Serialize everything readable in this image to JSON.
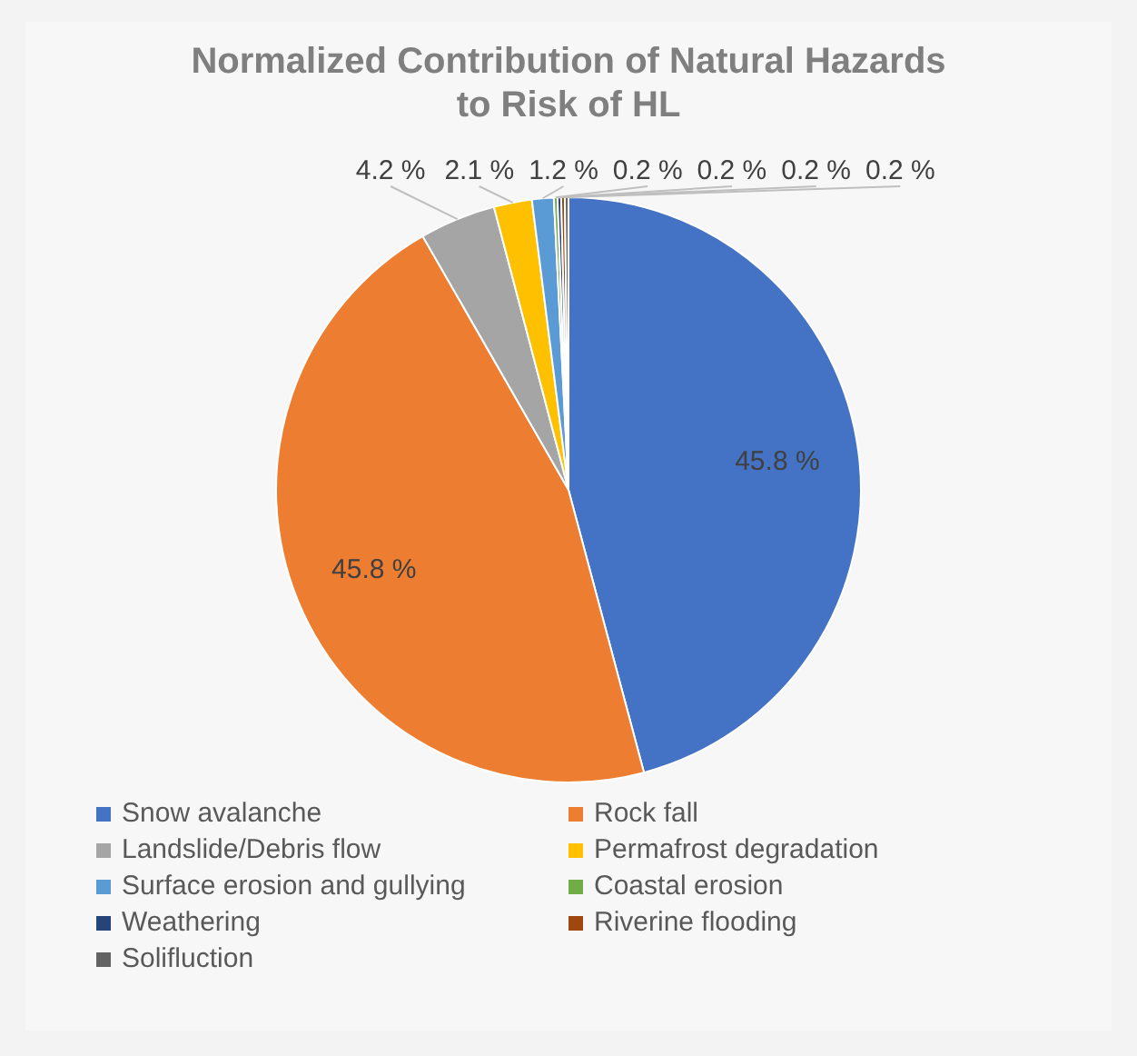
{
  "chart_data": {
    "type": "pie",
    "title": "Normalized Contribution of Natural Hazards to Risk of HL",
    "categories": [
      "Snow avalanche",
      "Rock fall",
      "Landslide/Debris flow",
      "Permafrost degradation",
      "Surface erosion and gullying",
      "Coastal erosion",
      "Weathering",
      "Riverine flooding",
      "Solifluction"
    ],
    "values": [
      45.8,
      45.8,
      4.2,
      2.1,
      1.2,
      0.2,
      0.2,
      0.2,
      0.2
    ],
    "value_labels": [
      "45.8 %",
      "45.8 %",
      "4.2 %",
      "2.1 %",
      "1.2 %",
      "0.2 %",
      "0.2 %",
      "0.2 %",
      "0.2 %"
    ],
    "colors": [
      "#4472c4",
      "#ed7d31",
      "#a5a5a5",
      "#ffc000",
      "#5b9bd5",
      "#70ad47",
      "#264478",
      "#9e480e",
      "#636363"
    ],
    "legend": "bottom"
  }
}
